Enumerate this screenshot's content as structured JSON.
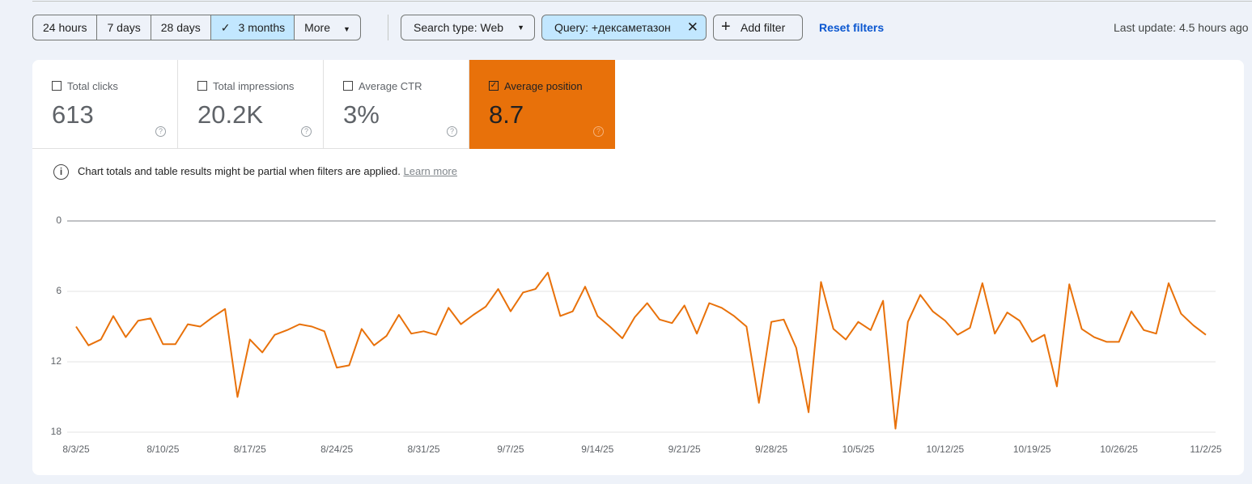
{
  "toolbar": {
    "date_ranges": [
      {
        "label": "24 hours",
        "selected": false
      },
      {
        "label": "7 days",
        "selected": false
      },
      {
        "label": "28 days",
        "selected": false
      },
      {
        "label": "3 months",
        "selected": true
      },
      {
        "label": "More",
        "selected": false
      }
    ],
    "search_type": "Search type: Web",
    "query_filter": "Query: +дексаметазон",
    "add_filter": "Add filter",
    "reset_filters": "Reset filters",
    "last_update": "Last update: 4.5 hours ago"
  },
  "metrics": [
    {
      "label": "Total clicks",
      "value": "613",
      "checked": false
    },
    {
      "label": "Total impressions",
      "value": "20.2K",
      "checked": false
    },
    {
      "label": "Average CTR",
      "value": "3%",
      "checked": false
    },
    {
      "label": "Average position",
      "value": "8.7",
      "checked": true
    }
  ],
  "notice": {
    "text": "Chart totals and table results might be partial when filters are applied.",
    "link": "Learn more"
  },
  "chart_data": {
    "type": "line",
    "color": "#e8710a",
    "y_inverted": true,
    "grid": true,
    "categories": [
      "8/3/25",
      null,
      null,
      null,
      null,
      null,
      null,
      "8/10/25",
      null,
      null,
      null,
      null,
      null,
      null,
      "8/17/25",
      null,
      null,
      null,
      null,
      null,
      null,
      "8/24/25",
      null,
      null,
      null,
      null,
      null,
      null,
      "8/31/25",
      null,
      null,
      null,
      null,
      null,
      null,
      "9/7/25",
      null,
      null,
      null,
      null,
      null,
      null,
      "9/14/25",
      null,
      null,
      null,
      null,
      null,
      null,
      "9/21/25",
      null,
      null,
      null,
      null,
      null,
      null,
      "9/28/25",
      null,
      null,
      null,
      null,
      null,
      null,
      "10/5/25",
      null,
      null,
      null,
      null,
      null,
      null,
      "10/12/25",
      null,
      null,
      null,
      null,
      null,
      null,
      "10/19/25",
      null,
      null,
      null,
      null,
      null,
      null,
      "10/26/25",
      null,
      null,
      null,
      null,
      null,
      null,
      "11/2/25"
    ],
    "values": [
      9.0,
      10.6,
      10.1,
      8.1,
      9.9,
      8.5,
      8.3,
      10.5,
      10.5,
      8.8,
      9.0,
      8.2,
      7.5,
      15.0,
      10.1,
      11.2,
      9.7,
      9.3,
      8.8,
      9.0,
      9.4,
      12.5,
      12.3,
      9.2,
      10.6,
      9.8,
      8.0,
      9.6,
      9.4,
      9.7,
      7.4,
      8.8,
      8.0,
      7.3,
      5.8,
      7.7,
      6.1,
      5.8,
      4.4,
      8.1,
      7.7,
      5.6,
      8.1,
      9.0,
      10.0,
      8.2,
      7.0,
      8.4,
      8.7,
      7.2,
      9.6,
      7.0,
      7.4,
      8.1,
      9.0,
      15.5,
      8.6,
      8.4,
      10.8,
      16.3,
      5.2,
      9.2,
      10.1,
      8.6,
      9.3,
      6.8,
      17.7,
      8.6,
      6.3,
      7.7,
      8.5,
      9.7,
      9.1,
      5.3,
      9.6,
      7.8,
      8.5,
      10.3,
      9.7,
      14.1,
      5.4,
      9.2,
      9.9,
      10.3,
      10.3,
      7.7,
      9.3,
      9.6,
      5.3,
      7.9,
      8.9,
      9.7
    ],
    "ylim": [
      0,
      18
    ],
    "yticks": [
      0,
      6,
      12,
      18
    ]
  }
}
